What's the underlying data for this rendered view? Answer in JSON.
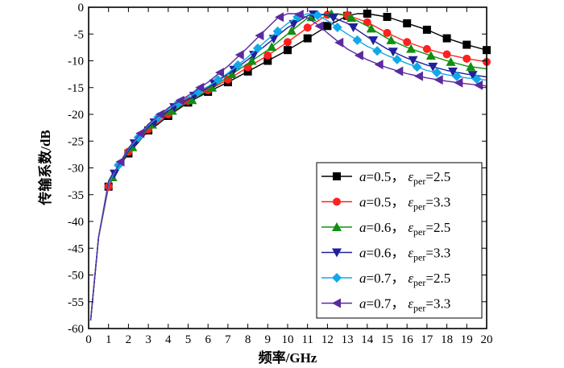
{
  "chart_data": {
    "type": "line",
    "xlabel": "频率/GHz",
    "ylabel": "传输系数/dB",
    "xlim": [
      0,
      20
    ],
    "ylim": [
      -60,
      0
    ],
    "x_ticks": [
      0,
      1,
      2,
      3,
      4,
      5,
      6,
      7,
      8,
      9,
      10,
      11,
      12,
      13,
      14,
      15,
      16,
      17,
      18,
      19,
      20
    ],
    "y_ticks": [
      0,
      -5,
      -10,
      -15,
      -20,
      -25,
      -30,
      -35,
      -40,
      -45,
      -50,
      -55,
      -60
    ],
    "x_tick_labels": [
      "0",
      "1",
      "2",
      "3",
      "4",
      "5",
      "6",
      "7",
      "8",
      "9",
      "10",
      "11",
      "12",
      "13",
      "14",
      "15",
      "16",
      "17",
      "18",
      "19",
      "20"
    ],
    "y_tick_labels": [
      "0",
      "-5",
      "-10",
      "-15",
      "-20",
      "-25",
      "-30",
      "-35",
      "-40",
      "-45",
      "-50",
      "-55",
      "-60"
    ],
    "grid": false,
    "legend_position": "lower-right",
    "series": [
      {
        "name": "a=0.5，εper=2.5",
        "label_a": "0.5",
        "label_eps": "2.5",
        "color": "#000000",
        "marker": "square",
        "x": [
          0.1,
          0.5,
          1.0,
          1.5,
          2.0,
          2.5,
          3.0,
          3.5,
          4.0,
          5.0,
          6.0,
          7.0,
          8.0,
          9.0,
          10.0,
          11.0,
          12.0,
          13.0,
          13.5,
          14.0,
          15.0,
          16.0,
          17.0,
          18.0,
          19.0,
          20.0
        ],
        "y": [
          -58.5,
          -43.0,
          -33.5,
          -30.0,
          -27.3,
          -25.2,
          -23.0,
          -21.8,
          -20.3,
          -17.8,
          -15.8,
          -14.0,
          -12.0,
          -10.0,
          -8.0,
          -5.8,
          -3.5,
          -1.6,
          -1.2,
          -1.2,
          -1.8,
          -3.0,
          -4.2,
          -5.8,
          -7.0,
          -8.0
        ],
        "marker_x": [
          1,
          2,
          3,
          4,
          5,
          6,
          7,
          8,
          9,
          10,
          11,
          12,
          13,
          14,
          15,
          16,
          17,
          18,
          19,
          20
        ]
      },
      {
        "name": "a=0.5，εper=3.3",
        "label_a": "0.5",
        "label_eps": "3.3",
        "color": "#ff2020",
        "marker": "circle",
        "x": [
          0.1,
          0.5,
          1.0,
          1.5,
          2.0,
          2.5,
          3.0,
          3.5,
          4.0,
          5.0,
          6.0,
          7.0,
          8.0,
          9.0,
          10.0,
          11.0,
          12.0,
          12.5,
          13.0,
          14.0,
          15.0,
          16.0,
          17.0,
          18.0,
          19.0,
          20.0
        ],
        "y": [
          -58.5,
          -43.0,
          -33.5,
          -30.0,
          -27.0,
          -25.0,
          -22.8,
          -21.5,
          -20.0,
          -17.5,
          -15.5,
          -13.5,
          -11.2,
          -9.0,
          -6.5,
          -3.8,
          -1.4,
          -1.2,
          -1.5,
          -2.8,
          -4.8,
          -6.5,
          -7.8,
          -8.8,
          -9.6,
          -10.2
        ],
        "marker_x": [
          1,
          2,
          3,
          4,
          5,
          6,
          7,
          8,
          9,
          10,
          11,
          12,
          13,
          14,
          15,
          16,
          17,
          18,
          19,
          20
        ]
      },
      {
        "name": "a=0.6，εper=2.5",
        "label_a": "0.6",
        "label_eps": "2.5",
        "color": "#109010",
        "marker": "triangle-up",
        "x": [
          0.1,
          0.5,
          1.0,
          1.5,
          2.0,
          2.5,
          3.0,
          3.5,
          4.0,
          5.0,
          6.0,
          7.0,
          8.0,
          9.0,
          10.0,
          11.0,
          12.0,
          12.5,
          13.0,
          14.0,
          15.0,
          16.0,
          17.0,
          18.0,
          19.0,
          20.0
        ],
        "y": [
          -58.5,
          -43.0,
          -33.0,
          -29.8,
          -27.0,
          -24.8,
          -22.5,
          -21.0,
          -19.7,
          -17.8,
          -15.5,
          -13.0,
          -10.5,
          -8.0,
          -5.0,
          -2.0,
          -1.2,
          -1.3,
          -1.6,
          -3.5,
          -5.8,
          -7.5,
          -8.8,
          -10.0,
          -11.0,
          -11.5
        ],
        "marker_x": [
          1.2,
          2.2,
          3.2,
          4.2,
          5.2,
          6.2,
          7.2,
          8.2,
          9.2,
          10.2,
          11.2,
          12.2,
          13.2,
          14.2,
          15.2,
          16.2,
          17.2,
          18.2,
          19.2
        ]
      },
      {
        "name": "a=0.6，εper=3.3",
        "label_a": "0.6",
        "label_eps": "3.3",
        "color": "#20209a",
        "marker": "triangle-down",
        "x": [
          0.1,
          0.5,
          1.0,
          1.5,
          2.0,
          2.5,
          3.0,
          3.5,
          4.0,
          5.0,
          6.0,
          7.0,
          8.0,
          9.0,
          10.0,
          11.0,
          11.5,
          12.0,
          13.0,
          14.0,
          15.0,
          16.0,
          17.0,
          18.0,
          19.0,
          20.0
        ],
        "y": [
          -58.5,
          -43.0,
          -33.0,
          -29.8,
          -26.8,
          -24.5,
          -22.3,
          -21.0,
          -19.3,
          -17.2,
          -15.0,
          -12.5,
          -9.8,
          -6.8,
          -3.8,
          -1.6,
          -1.2,
          -1.5,
          -3.0,
          -5.5,
          -7.8,
          -9.5,
          -10.8,
          -11.8,
          -12.5,
          -13.0
        ],
        "marker_x": [
          1.3,
          2.3,
          3.3,
          4.3,
          5.3,
          6.3,
          7.3,
          8.3,
          9.3,
          10.3,
          11.3,
          12.3,
          13.3,
          14.3,
          15.3,
          16.3,
          17.3,
          18.3,
          19.3
        ]
      },
      {
        "name": "a=0.7，εper=2.5",
        "label_a": "0.7",
        "label_eps": "2.5",
        "color": "#10a8e8",
        "marker": "diamond",
        "x": [
          0.1,
          0.5,
          1.0,
          1.5,
          2.0,
          2.5,
          3.0,
          3.5,
          4.0,
          5.0,
          6.0,
          7.0,
          8.0,
          9.0,
          10.0,
          10.5,
          11.0,
          11.5,
          12.0,
          13.0,
          14.0,
          15.0,
          16.0,
          17.0,
          18.0,
          19.0,
          20.0
        ],
        "y": [
          -58.5,
          -43.0,
          -33.0,
          -29.5,
          -26.5,
          -24.3,
          -22.0,
          -20.5,
          -19.0,
          -16.8,
          -14.8,
          -12.3,
          -9.3,
          -6.0,
          -3.0,
          -1.8,
          -1.2,
          -1.5,
          -2.5,
          -5.0,
          -7.3,
          -9.0,
          -10.5,
          -11.8,
          -12.6,
          -13.2,
          -13.6
        ],
        "marker_x": [
          1.5,
          2.5,
          3.5,
          4.5,
          5.5,
          6.5,
          7.5,
          8.5,
          9.5,
          10.5,
          11.5,
          12.5,
          13.5,
          14.5,
          15.5,
          16.5,
          17.5,
          18.5,
          19.5
        ]
      },
      {
        "name": "a=0.7，εper=3.3",
        "label_a": "0.7",
        "label_eps": "3.3",
        "color": "#5a2aa0",
        "marker": "triangle-left",
        "x": [
          0.1,
          0.5,
          1.0,
          1.5,
          2.0,
          2.5,
          3.0,
          3.5,
          4.0,
          5.0,
          6.0,
          7.0,
          8.0,
          9.0,
          9.5,
          10.0,
          10.5,
          11.0,
          11.5,
          12.0,
          13.0,
          14.0,
          15.0,
          16.0,
          17.0,
          18.0,
          19.0,
          20.0
        ],
        "y": [
          -58.5,
          -43.0,
          -32.5,
          -29.5,
          -26.3,
          -24.0,
          -21.8,
          -20.3,
          -18.8,
          -16.5,
          -14.0,
          -11.0,
          -7.5,
          -3.8,
          -2.0,
          -1.2,
          -1.2,
          -2.0,
          -3.2,
          -4.8,
          -7.8,
          -9.8,
          -11.3,
          -12.4,
          -13.2,
          -13.8,
          -14.3,
          -14.7
        ],
        "marker_x": [
          1.6,
          2.6,
          3.6,
          4.6,
          5.6,
          6.6,
          7.6,
          8.6,
          9.6,
          10.6,
          11.6,
          12.6,
          13.6,
          14.6,
          15.6,
          16.6,
          17.6,
          18.6,
          19.6
        ]
      }
    ]
  }
}
